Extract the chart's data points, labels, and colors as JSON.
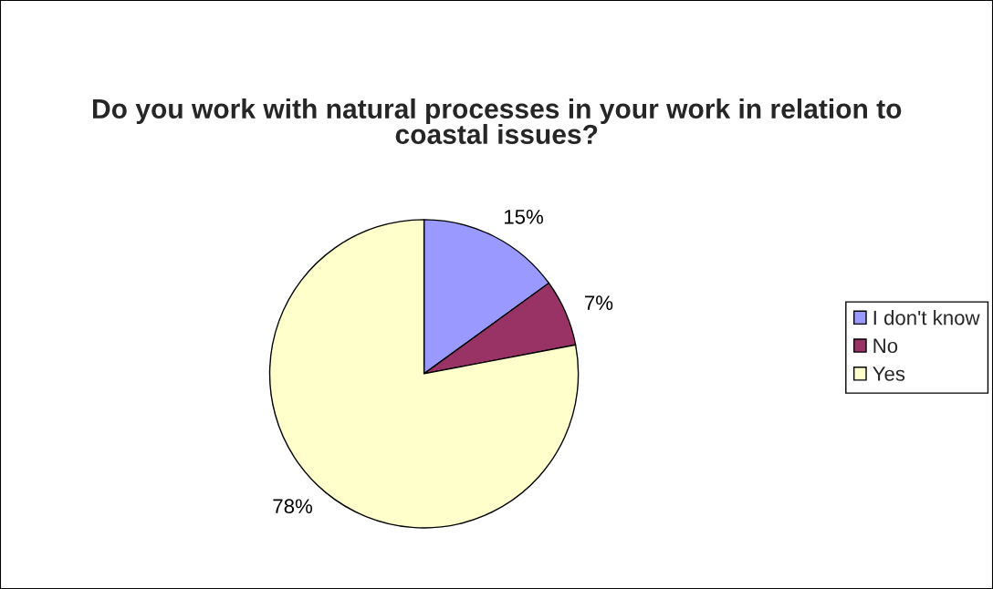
{
  "chart_data": {
    "type": "pie",
    "title": "Do you work with natural processes in your work in relation to coastal issues?",
    "categories": [
      "I don't know",
      "No",
      "Yes"
    ],
    "values": [
      15,
      7,
      78
    ],
    "value_labels": [
      "15%",
      "7%",
      "78%"
    ],
    "colors": [
      "#9999ff",
      "#993366",
      "#ffffcc"
    ],
    "legend": "right"
  }
}
